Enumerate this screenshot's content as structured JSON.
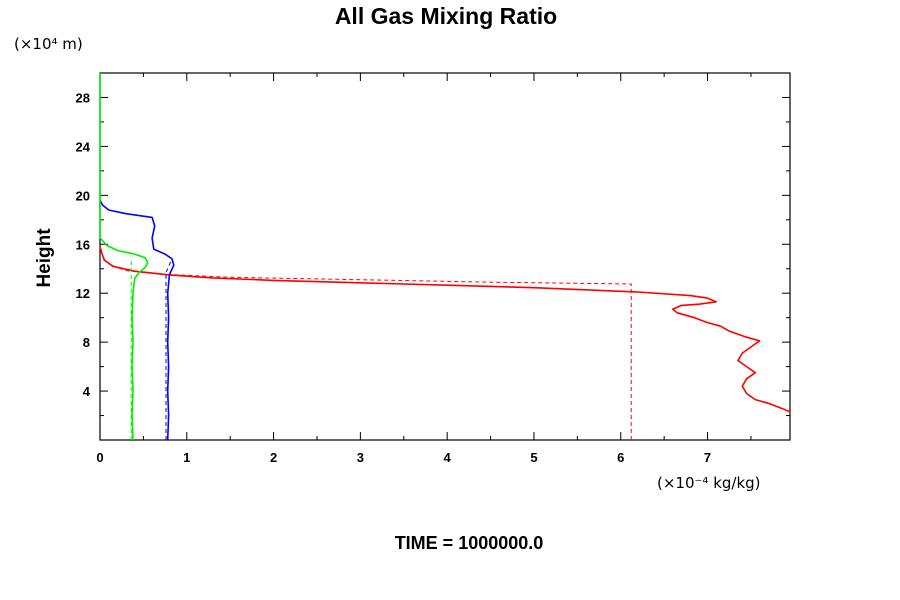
{
  "chart_data": {
    "type": "line",
    "title": "All Gas Mixing Ratio",
    "ylabel": "Height",
    "y_unit": "(×10⁴ m)",
    "x_unit": "(×10⁻⁴ kg/kg)",
    "footer": "TIME = 1000000.0",
    "xlim": [
      0,
      7.95
    ],
    "ylim": [
      0,
      30
    ],
    "x_ticks": [
      "0",
      "1",
      "2",
      "3",
      "4",
      "5",
      "6",
      "7"
    ],
    "y_ticks": [
      "4",
      "8",
      "12",
      "16",
      "20",
      "24",
      "28"
    ],
    "grid": false,
    "series": [
      {
        "color": "#ff0000",
        "style": "solid",
        "points": [
          [
            7.95,
            2.3
          ],
          [
            7.85,
            2.6
          ],
          [
            7.7,
            3.0
          ],
          [
            7.55,
            3.3
          ],
          [
            7.45,
            3.8
          ],
          [
            7.4,
            4.4
          ],
          [
            7.45,
            5.0
          ],
          [
            7.55,
            5.5
          ],
          [
            7.45,
            6.0
          ],
          [
            7.35,
            6.5
          ],
          [
            7.4,
            7.1
          ],
          [
            7.5,
            7.6
          ],
          [
            7.6,
            8.1
          ],
          [
            7.45,
            8.4
          ],
          [
            7.25,
            8.9
          ],
          [
            7.15,
            9.3
          ],
          [
            7.0,
            9.6
          ],
          [
            6.85,
            10.0
          ],
          [
            6.65,
            10.4
          ],
          [
            6.6,
            10.7
          ],
          [
            6.7,
            11.0
          ],
          [
            6.9,
            11.1
          ],
          [
            7.1,
            11.3
          ],
          [
            7.0,
            11.6
          ],
          [
            6.8,
            11.8
          ],
          [
            6.2,
            12.1
          ],
          [
            5.0,
            12.45
          ],
          [
            4.0,
            12.65
          ],
          [
            3.0,
            12.85
          ],
          [
            2.0,
            13.05
          ],
          [
            1.3,
            13.25
          ],
          [
            0.8,
            13.5
          ],
          [
            0.4,
            13.8
          ],
          [
            0.15,
            14.2
          ],
          [
            0.05,
            14.7
          ],
          [
            0.02,
            15.3
          ],
          [
            0,
            15.8
          ]
        ]
      },
      {
        "color": "#ff0000",
        "style": "dashed",
        "points": [
          [
            6.12,
            0
          ],
          [
            6.12,
            12.3
          ],
          [
            6.12,
            12.75
          ],
          [
            4.5,
            12.9
          ],
          [
            3.0,
            13.1
          ],
          [
            1.5,
            13.3
          ],
          [
            0.7,
            13.55
          ],
          [
            0.3,
            13.85
          ],
          [
            0.12,
            14.3
          ],
          [
            0.05,
            14.8
          ]
        ]
      },
      {
        "color": "#0000ff",
        "style": "solid",
        "points": [
          [
            0.78,
            0
          ],
          [
            0.79,
            2
          ],
          [
            0.78,
            4
          ],
          [
            0.79,
            6
          ],
          [
            0.78,
            8
          ],
          [
            0.79,
            10
          ],
          [
            0.78,
            12
          ],
          [
            0.8,
            13.5
          ],
          [
            0.85,
            14.3
          ],
          [
            0.83,
            14.8
          ],
          [
            0.75,
            15.2
          ],
          [
            0.62,
            15.6
          ],
          [
            0.6,
            16.5
          ],
          [
            0.63,
            17.5
          ],
          [
            0.6,
            18.2
          ],
          [
            0.3,
            18.5
          ],
          [
            0.1,
            18.8
          ],
          [
            0.03,
            19.2
          ],
          [
            0,
            19.6
          ]
        ]
      },
      {
        "color": "#0000ff",
        "style": "dashed",
        "points": [
          [
            0.76,
            0
          ],
          [
            0.76,
            13.7
          ],
          [
            0.8,
            14.3
          ],
          [
            0.82,
            14.7
          ]
        ]
      },
      {
        "color": "#00ee00",
        "style": "solid",
        "points": [
          [
            0.38,
            0
          ],
          [
            0.37,
            2
          ],
          [
            0.38,
            4
          ],
          [
            0.37,
            6
          ],
          [
            0.38,
            8
          ],
          [
            0.37,
            10
          ],
          [
            0.38,
            12
          ],
          [
            0.4,
            13.2
          ],
          [
            0.45,
            13.7
          ],
          [
            0.52,
            14.1
          ],
          [
            0.55,
            14.5
          ],
          [
            0.52,
            14.9
          ],
          [
            0.4,
            15.2
          ],
          [
            0.2,
            15.5
          ],
          [
            0.08,
            15.9
          ],
          [
            0.03,
            16.3
          ],
          [
            0,
            16.5
          ],
          [
            0,
            30
          ]
        ]
      },
      {
        "color": "#00ee00",
        "style": "dashed",
        "points": [
          [
            0.36,
            0
          ],
          [
            0.36,
            14.9
          ]
        ]
      }
    ]
  }
}
